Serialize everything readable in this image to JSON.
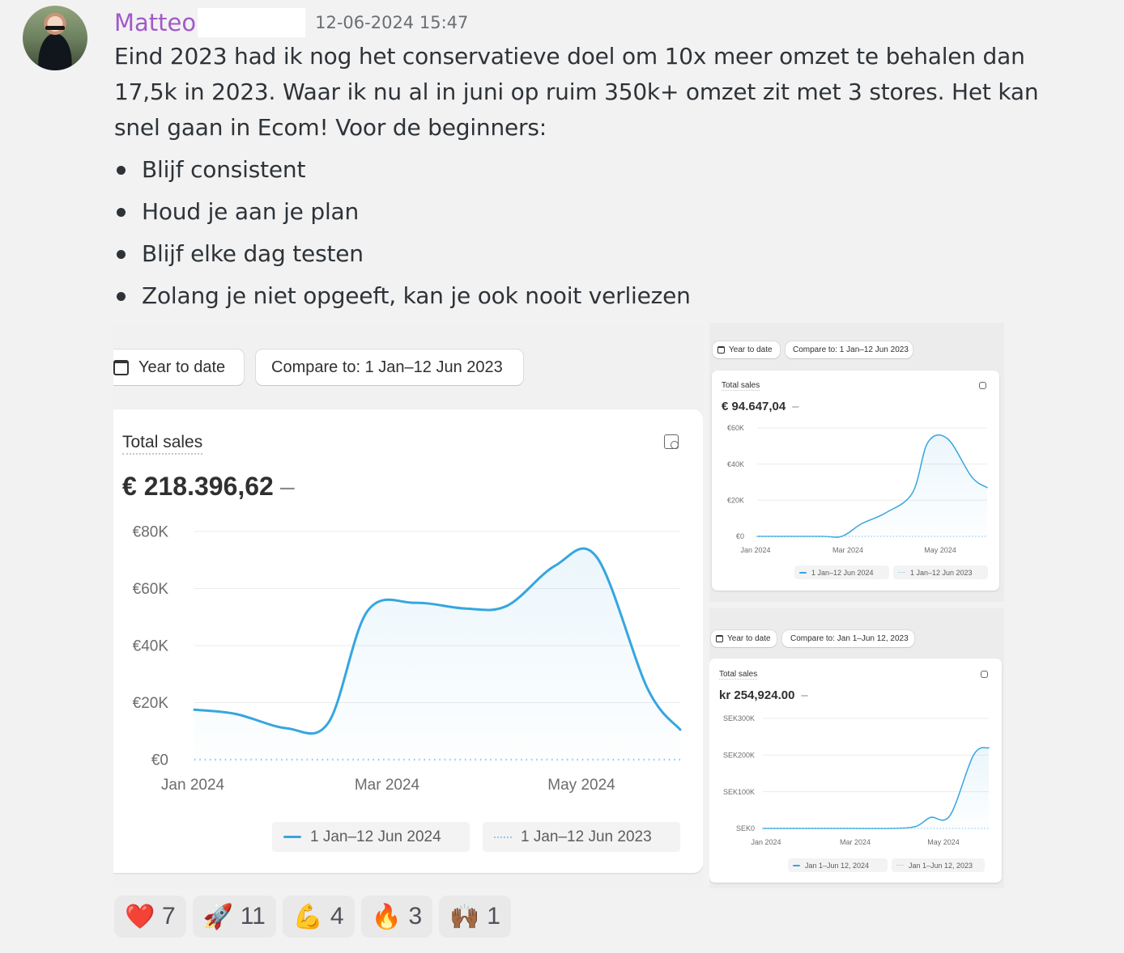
{
  "message": {
    "username": "Matteo",
    "timestamp": "12-06-2024 15:47",
    "text": "Eind 2023 had ik nog het conservatieve doel om 10x meer omzet te behalen dan 17,5k in 2023. Waar ik nu al in juni op ruim 350k+ omzet zit met 3 stores. Het kan snel gaan in Ecom! Voor de beginners:",
    "bullets": [
      "Blijf consistent",
      "Houd je aan je plan",
      "Blijf elke dag testen",
      "Zolang je niet opgeeft, kan je ook nooit verliezen"
    ]
  },
  "attachments": [
    {
      "date_range_label": "Year to date",
      "compare_label": "Compare to: 1 Jan–12 Jun 2023",
      "card_title": "Total sales",
      "total_value": "€ 218.396,62",
      "total_change": "–",
      "legend_current": "1 Jan–12 Jun 2024",
      "legend_previous": "1 Jan–12 Jun 2023"
    },
    {
      "date_range_label": "Year to date",
      "compare_label": "Compare to: 1 Jan–12 Jun 2023",
      "card_title": "Total sales",
      "total_value": "€ 94.647,04",
      "total_change": "–",
      "legend_current": "1 Jan–12 Jun 2024",
      "legend_previous": "1 Jan–12 Jun 2023"
    },
    {
      "date_range_label": "Year to date",
      "compare_label": "Compare to: Jan 1–Jun 12, 2023",
      "card_title": "Total sales",
      "total_value": "kr 254,924.00",
      "total_change": "–",
      "legend_current": "Jan 1–Jun 12, 2024",
      "legend_previous": "Jan 1–Jun 12, 2023"
    }
  ],
  "chart_data": [
    {
      "type": "area",
      "title": "Total sales",
      "x_ticks": [
        "Jan 2024",
        "Mar 2024",
        "May 2024"
      ],
      "y_ticks": [
        "€0",
        "€20K",
        "€40K",
        "€60K",
        "€80K"
      ],
      "ylim": [
        0,
        80000
      ],
      "series": [
        {
          "name": "1 Jan–12 Jun 2024",
          "style": "solid",
          "color": "#35a6df",
          "x": [
            "2024-01-01",
            "2024-01-15",
            "2024-02-01",
            "2024-02-15",
            "2024-02-28",
            "2024-03-15",
            "2024-04-01",
            "2024-04-15",
            "2024-05-01",
            "2024-05-15",
            "2024-06-01",
            "2024-06-12"
          ],
          "values": [
            17500,
            16000,
            11000,
            13000,
            52000,
            55000,
            53000,
            54000,
            68000,
            71000,
            25000,
            10500
          ]
        },
        {
          "name": "1 Jan–12 Jun 2023",
          "style": "dotted",
          "color": "#8fcdee",
          "x": [
            "2024-01-01",
            "2024-06-12"
          ],
          "values": [
            0,
            0
          ]
        }
      ],
      "grid": true,
      "legend": "bottom-right"
    },
    {
      "type": "area",
      "title": "Total sales",
      "x_ticks": [
        "Jan 2024",
        "Mar 2024",
        "May 2024"
      ],
      "y_ticks": [
        "€0",
        "€20K",
        "€40K",
        "€60K"
      ],
      "ylim": [
        0,
        60000
      ],
      "series": [
        {
          "name": "1 Jan–12 Jun 2024",
          "style": "solid",
          "color": "#35a6df",
          "x": [
            "2024-01-01",
            "2024-02-15",
            "2024-03-01",
            "2024-03-15",
            "2024-04-01",
            "2024-04-20",
            "2024-05-01",
            "2024-05-15",
            "2024-06-01",
            "2024-06-12"
          ],
          "values": [
            0,
            0,
            0,
            7000,
            13000,
            24000,
            52000,
            54000,
            33000,
            27000
          ]
        },
        {
          "name": "1 Jan–12 Jun 2023",
          "style": "dotted",
          "color": "#8fcdee",
          "x": [
            "2024-01-01",
            "2024-06-12"
          ],
          "values": [
            0,
            0
          ]
        }
      ],
      "grid": true,
      "legend": "bottom-right"
    },
    {
      "type": "area",
      "title": "Total sales",
      "x_ticks": [
        "Jan 2024",
        "Mar 2024",
        "May 2024"
      ],
      "y_ticks": [
        "SEK0",
        "SEK100K",
        "SEK200K",
        "SEK300K"
      ],
      "ylim": [
        0,
        300000
      ],
      "series": [
        {
          "name": "Jan 1–Jun 12, 2024",
          "style": "solid",
          "color": "#35a6df",
          "x": [
            "2024-01-01",
            "2024-03-01",
            "2024-04-01",
            "2024-04-20",
            "2024-05-01",
            "2024-05-15",
            "2024-06-01",
            "2024-06-12"
          ],
          "values": [
            0,
            0,
            0,
            5000,
            30000,
            35000,
            200000,
            220000
          ]
        },
        {
          "name": "Jan 1–Jun 12, 2023",
          "style": "dotted",
          "color": "#8fcdee",
          "x": [
            "2024-01-01",
            "2024-06-12"
          ],
          "values": [
            0,
            0
          ]
        }
      ],
      "grid": true,
      "legend": "bottom-right"
    }
  ],
  "reactions": [
    {
      "emoji": "❤️",
      "icon": "heart-icon",
      "count": "7"
    },
    {
      "emoji": "🚀",
      "icon": "rocket-icon",
      "count": "11"
    },
    {
      "emoji": "💪",
      "icon": "flexed-biceps-icon",
      "count": "4"
    },
    {
      "emoji": "🔥",
      "icon": "fire-icon",
      "count": "3"
    },
    {
      "emoji": "🙌🏾",
      "icon": "raised-hands-icon",
      "count": "1"
    }
  ]
}
